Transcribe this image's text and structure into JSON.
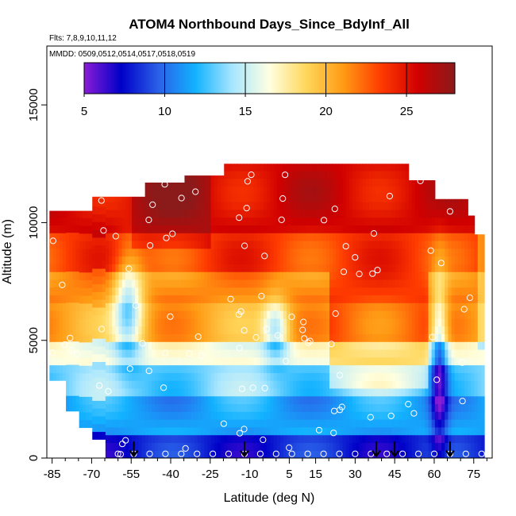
{
  "chart_data": {
    "type": "heatmap",
    "title": "ATOM4 Northbound Days_Since_BdyInf_All",
    "subtitle_flights": "Flts: 7,8,9,10,11,12",
    "subtitle_dates": "MMDD: 0509,0512,0514,0517,0518,0519",
    "xlabel": "Latitude (deg N)",
    "ylabel": "Altitude (m)",
    "xlim": [
      -87,
      82
    ],
    "ylim": [
      0,
      17500
    ],
    "x_ticks": [
      -85,
      -70,
      -55,
      -40,
      -25,
      -10,
      5,
      15,
      30,
      45,
      60,
      75
    ],
    "x_tick_labels": [
      "-85",
      "-70",
      "-55",
      "-40",
      "-25",
      "-10",
      "5",
      "15",
      "30",
      "45",
      "60",
      "75"
    ],
    "y_ticks": [
      0,
      5000,
      10000,
      15000
    ],
    "y_tick_labels": [
      "0",
      "5000",
      "10000",
      "15000"
    ],
    "colorbar": {
      "min": 5,
      "max": 28,
      "ticks": [
        5,
        10,
        15,
        20,
        25
      ],
      "tick_labels": [
        "5",
        "10",
        "15",
        "20",
        "25"
      ],
      "colors": [
        "#8a1cd6",
        "#0000c8",
        "#2a60e8",
        "#12b2ff",
        "#a8e6ff",
        "#ffffe0",
        "#ffd65a",
        "#ff9a14",
        "#ff3c00",
        "#d00000",
        "#8b1a1a"
      ]
    },
    "profile_arrow_latitudes": [
      -54,
      -12,
      38,
      45,
      66
    ],
    "column_tops_altitude_m": [
      {
        "lat_range": [
          -86,
          -70
        ],
        "top": 10500
      },
      {
        "lat_range": [
          -70,
          -50
        ],
        "top": 11100
      },
      {
        "lat_range": [
          -50,
          -35
        ],
        "top": 11700
      },
      {
        "lat_range": [
          -35,
          -20
        ],
        "top": 12000
      },
      {
        "lat_range": [
          -20,
          50
        ],
        "top": 12500
      },
      {
        "lat_range": [
          50,
          60
        ],
        "top": 11800
      },
      {
        "lat_range": [
          60,
          72
        ],
        "top": 11000
      },
      {
        "lat_range": [
          72,
          75
        ],
        "top": 10300
      },
      {
        "lat_range": [
          75,
          79
        ],
        "top": 9500
      }
    ],
    "grid": false,
    "legend": "colorbar top"
  }
}
